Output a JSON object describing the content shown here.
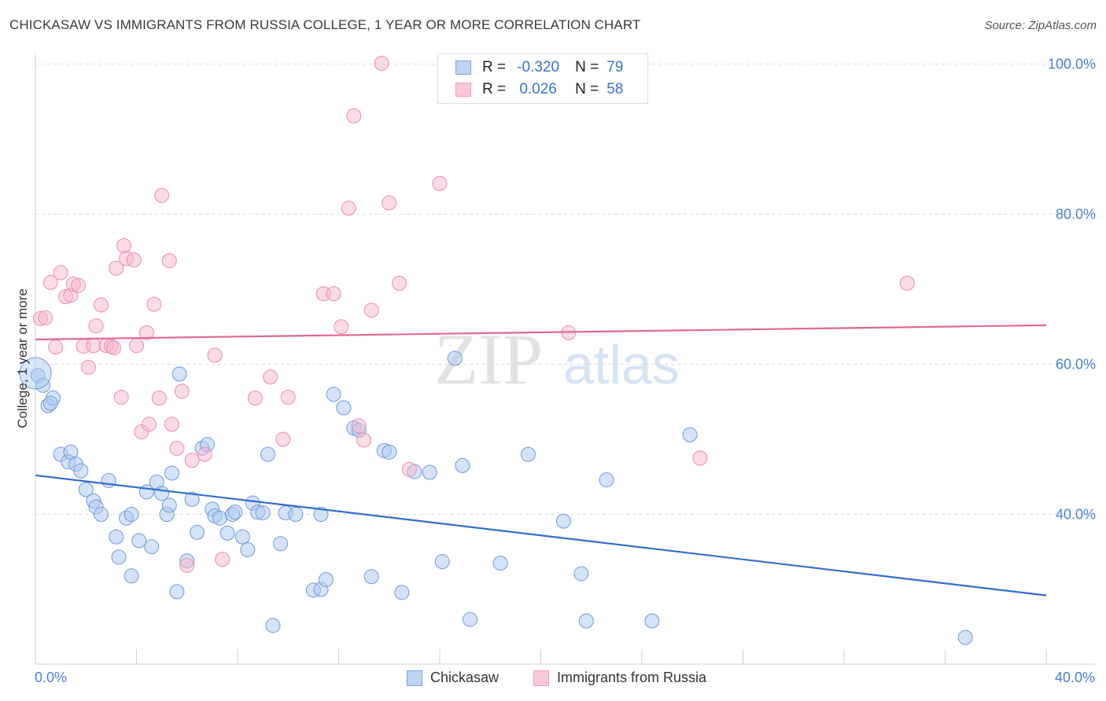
{
  "title": "CHICKASAW VS IMMIGRANTS FROM RUSSIA COLLEGE, 1 YEAR OR MORE CORRELATION CHART",
  "source": "Source: ZipAtlas.com",
  "watermark": {
    "zip": "ZIP",
    "atlas": "atlas"
  },
  "legend": {
    "rows": [
      {
        "r_label": "R =",
        "r_value": "-0.320",
        "n_label": "N =",
        "n_value": "79"
      },
      {
        "r_label": "R =",
        "r_value": "0.026",
        "n_label": "N =",
        "n_value": "58"
      }
    ]
  },
  "bottom_legend": [
    "Chickasaw",
    "Immigrants from Russia"
  ],
  "colors": {
    "blue_fill": "#a9c8f0",
    "blue_stroke": "#6f9ad8",
    "blue_line": "#2f6fd0",
    "pink_fill": "#f7b8cb",
    "pink_stroke": "#ea90ac",
    "pink_line": "#e06a90",
    "tick_text": "#4a7fd4"
  },
  "chart_data": {
    "type": "scatter",
    "title": "CHICKASAW VS IMMIGRANTS FROM RUSSIA COLLEGE, 1 YEAR OR MORE CORRELATION CHART",
    "xlabel": "",
    "ylabel": "College, 1 year or more",
    "xlim": [
      0,
      40
    ],
    "ylim": [
      20,
      102
    ],
    "x_tick_labels": [
      "0.0%",
      "40.0%"
    ],
    "y_ticks": [
      40,
      60,
      80,
      100
    ],
    "y_tick_labels": [
      "40.0%",
      "60.0%",
      "80.0%",
      "100.0%"
    ],
    "series": [
      {
        "name": "Chickasaw",
        "r": -0.32,
        "n": 79,
        "trend": {
          "x": [
            0,
            40
          ],
          "y": [
            45.2,
            29.2
          ]
        },
        "points": [
          [
            0.1,
            58.5
          ],
          [
            0.3,
            57.2
          ],
          [
            0.5,
            54.5
          ],
          [
            0.7,
            55.5
          ],
          [
            0.6,
            54.8
          ],
          [
            1.0,
            48.0
          ],
          [
            1.3,
            47.0
          ],
          [
            1.4,
            48.3
          ],
          [
            1.6,
            46.7
          ],
          [
            1.8,
            45.8
          ],
          [
            2.0,
            43.3
          ],
          [
            2.3,
            41.8
          ],
          [
            2.4,
            41.0
          ],
          [
            2.6,
            40.0
          ],
          [
            2.9,
            44.5
          ],
          [
            3.2,
            37.0
          ],
          [
            3.3,
            34.3
          ],
          [
            3.8,
            31.8
          ],
          [
            3.6,
            39.5
          ],
          [
            3.8,
            40.0
          ],
          [
            4.1,
            36.5
          ],
          [
            4.4,
            43.0
          ],
          [
            4.6,
            35.7
          ],
          [
            4.8,
            44.3
          ],
          [
            5.0,
            42.8
          ],
          [
            5.2,
            40.0
          ],
          [
            5.3,
            41.2
          ],
          [
            5.4,
            45.5
          ],
          [
            5.6,
            29.7
          ],
          [
            5.7,
            58.7
          ],
          [
            6.0,
            33.8
          ],
          [
            6.2,
            42.0
          ],
          [
            6.4,
            37.6
          ],
          [
            6.6,
            48.8
          ],
          [
            6.8,
            49.3
          ],
          [
            7.0,
            40.7
          ],
          [
            7.1,
            39.8
          ],
          [
            7.3,
            39.5
          ],
          [
            7.6,
            37.5
          ],
          [
            7.8,
            40.0
          ],
          [
            7.9,
            40.3
          ],
          [
            8.2,
            37.0
          ],
          [
            8.4,
            35.3
          ],
          [
            8.6,
            41.5
          ],
          [
            8.8,
            40.3
          ],
          [
            9.0,
            40.2
          ],
          [
            9.2,
            48.0
          ],
          [
            9.4,
            25.2
          ],
          [
            9.7,
            36.1
          ],
          [
            9.9,
            40.2
          ],
          [
            10.3,
            40.0
          ],
          [
            11.0,
            29.9
          ],
          [
            11.3,
            30.0
          ],
          [
            11.3,
            40.0
          ],
          [
            11.5,
            31.3
          ],
          [
            11.8,
            56.0
          ],
          [
            12.2,
            54.2
          ],
          [
            12.6,
            51.5
          ],
          [
            12.8,
            51.2
          ],
          [
            13.3,
            31.7
          ],
          [
            13.8,
            48.5
          ],
          [
            14.0,
            48.3
          ],
          [
            14.5,
            29.6
          ],
          [
            15.0,
            45.7
          ],
          [
            15.6,
            45.6
          ],
          [
            16.1,
            33.7
          ],
          [
            16.6,
            60.8
          ],
          [
            16.9,
            46.5
          ],
          [
            17.2,
            26.0
          ],
          [
            18.4,
            33.5
          ],
          [
            19.5,
            48.0
          ],
          [
            20.9,
            39.1
          ],
          [
            21.6,
            32.1
          ],
          [
            21.8,
            25.8
          ],
          [
            22.6,
            44.6
          ],
          [
            24.4,
            25.8
          ],
          [
            25.9,
            50.6
          ],
          [
            36.8,
            23.6
          ],
          [
            0.0,
            58.8
          ]
        ]
      },
      {
        "name": "Immigrants from Russia",
        "r": 0.026,
        "n": 58,
        "trend": {
          "x": [
            0,
            40
          ],
          "y": [
            63.3,
            65.2
          ]
        },
        "points": [
          [
            0.2,
            66.1
          ],
          [
            0.4,
            66.2
          ],
          [
            0.6,
            70.9
          ],
          [
            0.8,
            62.3
          ],
          [
            1.0,
            72.2
          ],
          [
            1.2,
            69.0
          ],
          [
            1.4,
            69.2
          ],
          [
            1.5,
            70.7
          ],
          [
            1.7,
            70.5
          ],
          [
            1.9,
            62.4
          ],
          [
            2.1,
            59.6
          ],
          [
            2.3,
            62.5
          ],
          [
            2.4,
            65.1
          ],
          [
            2.6,
            67.9
          ],
          [
            2.8,
            62.5
          ],
          [
            3.0,
            62.4
          ],
          [
            3.1,
            62.2
          ],
          [
            3.2,
            72.8
          ],
          [
            3.4,
            55.6
          ],
          [
            3.5,
            75.8
          ],
          [
            3.6,
            74.1
          ],
          [
            3.9,
            73.9
          ],
          [
            4.0,
            62.5
          ],
          [
            4.2,
            51.0
          ],
          [
            4.4,
            64.2
          ],
          [
            4.5,
            52.0
          ],
          [
            4.7,
            68.0
          ],
          [
            4.9,
            55.5
          ],
          [
            5.0,
            82.5
          ],
          [
            5.3,
            73.8
          ],
          [
            5.4,
            52.0
          ],
          [
            5.6,
            48.8
          ],
          [
            5.8,
            56.4
          ],
          [
            6.0,
            33.2
          ],
          [
            6.2,
            47.2
          ],
          [
            6.7,
            48.0
          ],
          [
            7.1,
            61.2
          ],
          [
            7.4,
            34.0
          ],
          [
            8.7,
            55.5
          ],
          [
            9.3,
            58.3
          ],
          [
            9.8,
            50.0
          ],
          [
            10.0,
            55.6
          ],
          [
            11.4,
            69.4
          ],
          [
            11.8,
            69.4
          ],
          [
            12.1,
            65.0
          ],
          [
            12.4,
            80.8
          ],
          [
            12.6,
            93.1
          ],
          [
            12.8,
            51.8
          ],
          [
            13.0,
            49.9
          ],
          [
            13.3,
            67.2
          ],
          [
            13.7,
            100.1
          ],
          [
            14.0,
            81.5
          ],
          [
            14.4,
            70.8
          ],
          [
            14.8,
            46.0
          ],
          [
            16.0,
            84.1
          ],
          [
            21.1,
            64.2
          ],
          [
            26.3,
            47.5
          ],
          [
            34.5,
            70.8
          ]
        ]
      }
    ]
  }
}
